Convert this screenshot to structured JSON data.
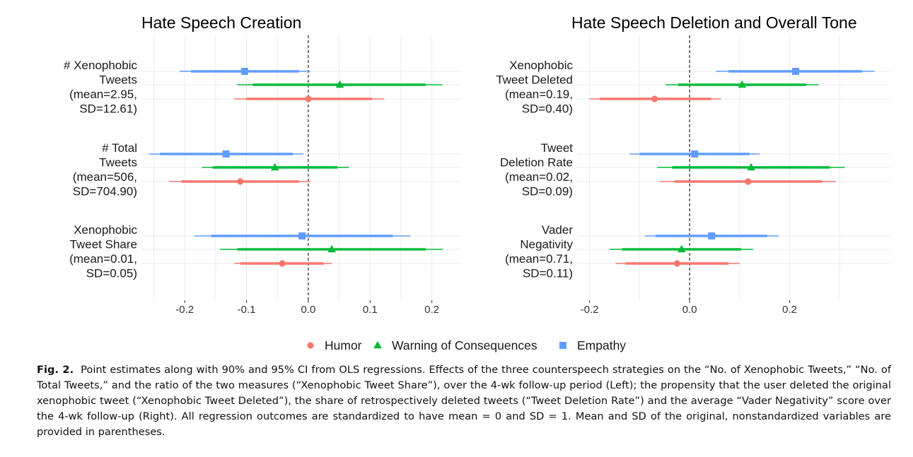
{
  "colors": {
    "humor": "#F8766D",
    "warning": "#00BA38",
    "empathy": "#619CFF",
    "grid": "#EBEBEB",
    "text": "#1a1a1a"
  },
  "legend": {
    "items": [
      {
        "label": "Humor",
        "shape": "circle",
        "color": "#F8766D"
      },
      {
        "label": "Warning of Consequences",
        "shape": "triangle",
        "color": "#00BA38"
      },
      {
        "label": "Empathy",
        "shape": "square",
        "color": "#619CFF"
      }
    ]
  },
  "chart_data": [
    {
      "type": "scatter",
      "subtype": "coefficient-plot",
      "title": "Hate Speech Creation",
      "xlim": [
        -0.27,
        0.245
      ],
      "x_ticks": [
        -0.2,
        -0.1,
        0.0,
        0.1,
        0.2
      ],
      "x_tick_labels": [
        "-0.2",
        "-0.1",
        "0.0",
        "0.1",
        "0.2"
      ],
      "reference_line": 0,
      "grid": true,
      "series_names": [
        "Humor",
        "Warning of Consequences",
        "Empathy"
      ],
      "groups": [
        {
          "label_lines": [
            "# Xenophobic",
            "Tweets",
            "(mean=2.95,",
            "SD=12.61)"
          ],
          "estimates": [
            {
              "series": "Empathy",
              "point": -0.103,
              "ci90": [
                -0.19,
                -0.015
              ],
              "ci95": [
                -0.208,
                0.003
              ]
            },
            {
              "series": "Warning of Consequences",
              "point": 0.051,
              "ci90": [
                -0.09,
                0.19
              ],
              "ci95": [
                -0.115,
                0.217
              ]
            },
            {
              "series": "Humor",
              "point": 0.0,
              "ci90": [
                -0.1,
                0.103
              ],
              "ci95": [
                -0.12,
                0.123
              ]
            }
          ]
        },
        {
          "label_lines": [
            "# Total",
            "Tweets",
            "(mean=506,",
            "SD=704.90)"
          ],
          "estimates": [
            {
              "series": "Empathy",
              "point": -0.133,
              "ci90": [
                -0.24,
                -0.025
              ],
              "ci95": [
                -0.258,
                -0.008
              ]
            },
            {
              "series": "Warning of Consequences",
              "point": -0.054,
              "ci90": [
                -0.155,
                0.047
              ],
              "ci95": [
                -0.172,
                0.066
              ]
            },
            {
              "series": "Humor",
              "point": -0.11,
              "ci90": [
                -0.205,
                -0.015
              ],
              "ci95": [
                -0.225,
                0.003
              ]
            }
          ]
        },
        {
          "label_lines": [
            "Xenophobic",
            "Tweet Share",
            "(mean=0.01,",
            "SD=0.05)"
          ],
          "estimates": [
            {
              "series": "Empathy",
              "point": -0.01,
              "ci90": [
                -0.157,
                0.137
              ],
              "ci95": [
                -0.185,
                0.165
              ]
            },
            {
              "series": "Warning of Consequences",
              "point": 0.038,
              "ci90": [
                -0.115,
                0.19
              ],
              "ci95": [
                -0.143,
                0.218
              ]
            },
            {
              "series": "Humor",
              "point": -0.042,
              "ci90": [
                -0.11,
                0.025
              ],
              "ci95": [
                -0.12,
                0.038
              ]
            }
          ]
        }
      ]
    },
    {
      "type": "scatter",
      "subtype": "coefficient-plot",
      "title": "Hate Speech Deletion and Overall Tone",
      "xlim": [
        -0.225,
        0.4
      ],
      "x_ticks": [
        -0.2,
        0.0,
        0.2
      ],
      "x_tick_labels": [
        "-0.2",
        "0.0",
        "0.2"
      ],
      "reference_line": 0,
      "grid": true,
      "series_names": [
        "Humor",
        "Warning of Consequences",
        "Empathy"
      ],
      "groups": [
        {
          "label_lines": [
            "Xenophobic",
            "Tweet Deleted",
            "(mean=0.19,",
            "SD=0.40)"
          ],
          "estimates": [
            {
              "series": "Empathy",
              "point": 0.212,
              "ci90": [
                0.078,
                0.345
              ],
              "ci95": [
                0.053,
                0.37
              ]
            },
            {
              "series": "Warning of Consequences",
              "point": 0.105,
              "ci90": [
                -0.023,
                0.233
              ],
              "ci95": [
                -0.048,
                0.258
              ]
            },
            {
              "series": "Humor",
              "point": -0.07,
              "ci90": [
                -0.18,
                0.043
              ],
              "ci95": [
                -0.2,
                0.063
              ]
            }
          ]
        },
        {
          "label_lines": [
            "Tweet",
            "Deletion Rate",
            "(mean=0.02,",
            "SD=0.09)"
          ],
          "estimates": [
            {
              "series": "Empathy",
              "point": 0.01,
              "ci90": [
                -0.1,
                0.12
              ],
              "ci95": [
                -0.12,
                0.14
              ]
            },
            {
              "series": "Warning of Consequences",
              "point": 0.123,
              "ci90": [
                -0.035,
                0.28
              ],
              "ci95": [
                -0.065,
                0.31
              ]
            },
            {
              "series": "Humor",
              "point": 0.117,
              "ci90": [
                -0.03,
                0.265
              ],
              "ci95": [
                -0.06,
                0.292
              ]
            }
          ]
        },
        {
          "label_lines": [
            "Vader",
            "Negativity",
            "(mean=0.71,",
            "SD=0.11)"
          ],
          "estimates": [
            {
              "series": "Empathy",
              "point": 0.044,
              "ci90": [
                -0.068,
                0.155
              ],
              "ci95": [
                -0.09,
                0.178
              ]
            },
            {
              "series": "Warning of Consequences",
              "point": -0.016,
              "ci90": [
                -0.135,
                0.103
              ],
              "ci95": [
                -0.16,
                0.127
              ]
            },
            {
              "series": "Humor",
              "point": -0.025,
              "ci90": [
                -0.128,
                0.078
              ],
              "ci95": [
                -0.148,
                0.1
              ]
            }
          ]
        }
      ]
    }
  ],
  "caption": {
    "label": "Fig. 2.",
    "text": "Point estimates along with 90% and 95% CI from OLS regressions. Effects of the three counterspeech strategies on the “No. of Xenophobic Tweets,” “No. of Total Tweets,” and the ratio of the two measures (“Xenophobic Tweet Share”), over the 4-wk follow-up period (Left); the propensity that the user deleted the original xenophobic tweet (“Xenophobic Tweet Deleted”), the share of retrospectively deleted tweets (“Tweet Deletion Rate”) and the average “Vader Negativity” score over the 4-wk follow-up (Right). All regression outcomes are standardized to have mean = 0 and SD = 1. Mean and SD of the original, nonstandardized variables are provided in parentheses."
  }
}
